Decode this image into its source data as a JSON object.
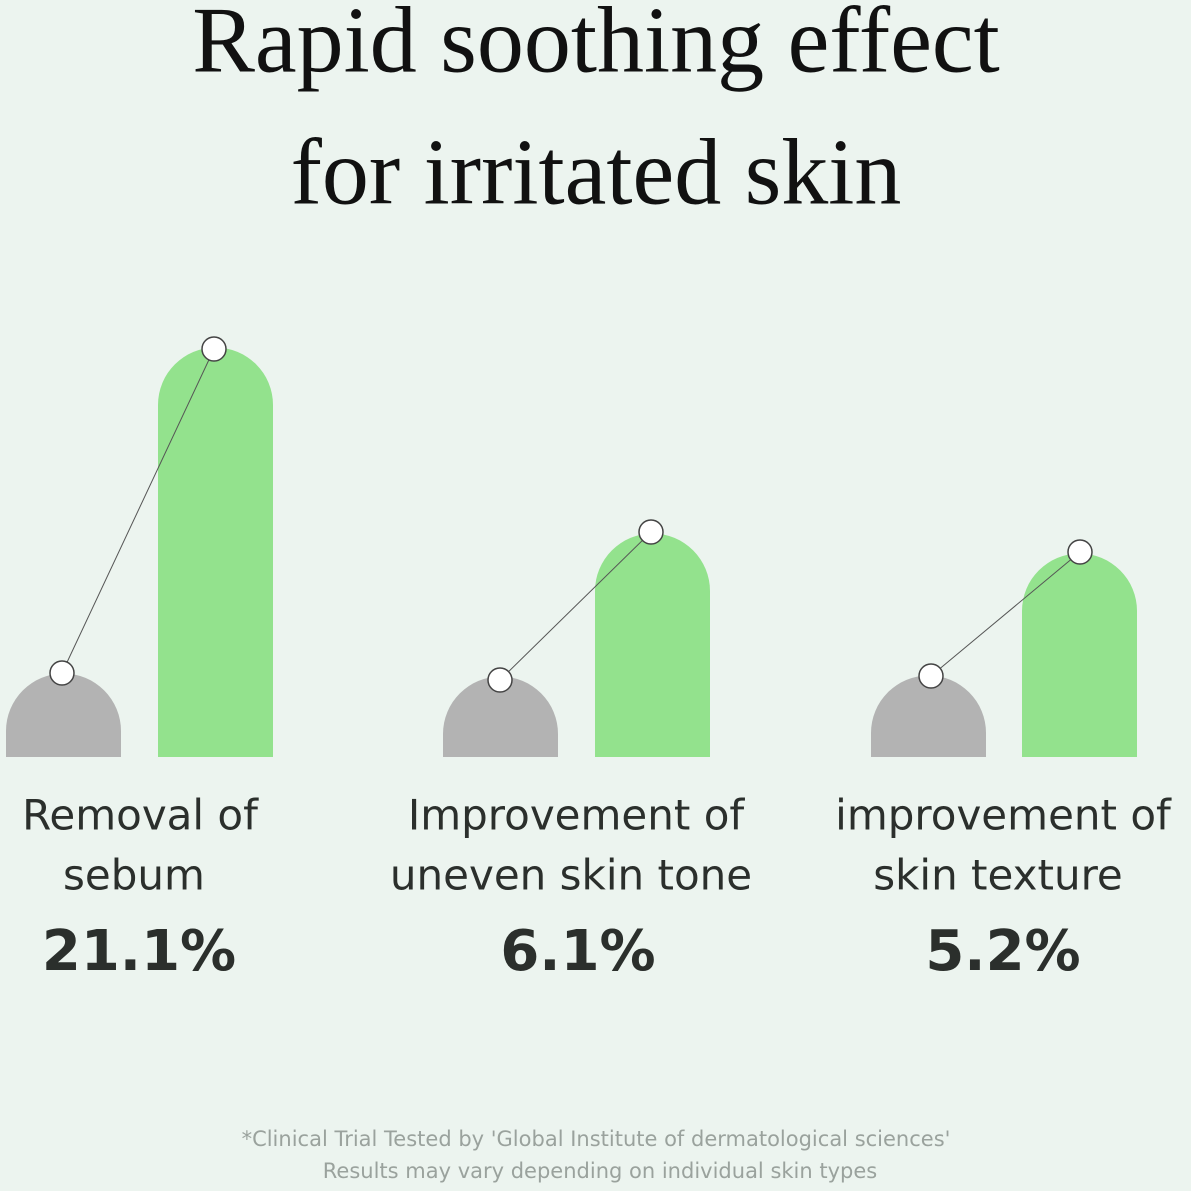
{
  "header": {
    "title_lines": [
      "Rapid soothing effect",
      "for irritated skin"
    ]
  },
  "items": [
    {
      "label_lines": [
        "Removal of",
        "sebum"
      ],
      "value": "21.1%"
    },
    {
      "label_lines": [
        "Improvement of",
        "uneven skin tone"
      ],
      "value": "6.1%"
    },
    {
      "label_lines": [
        "improvement of",
        "skin texture"
      ],
      "value": "5.2%"
    }
  ],
  "footnote": [
    "*Clinical Trial Tested by 'Global Institute of dermatological sciences'",
    "Results may vary depending on individual skin types"
  ]
}
